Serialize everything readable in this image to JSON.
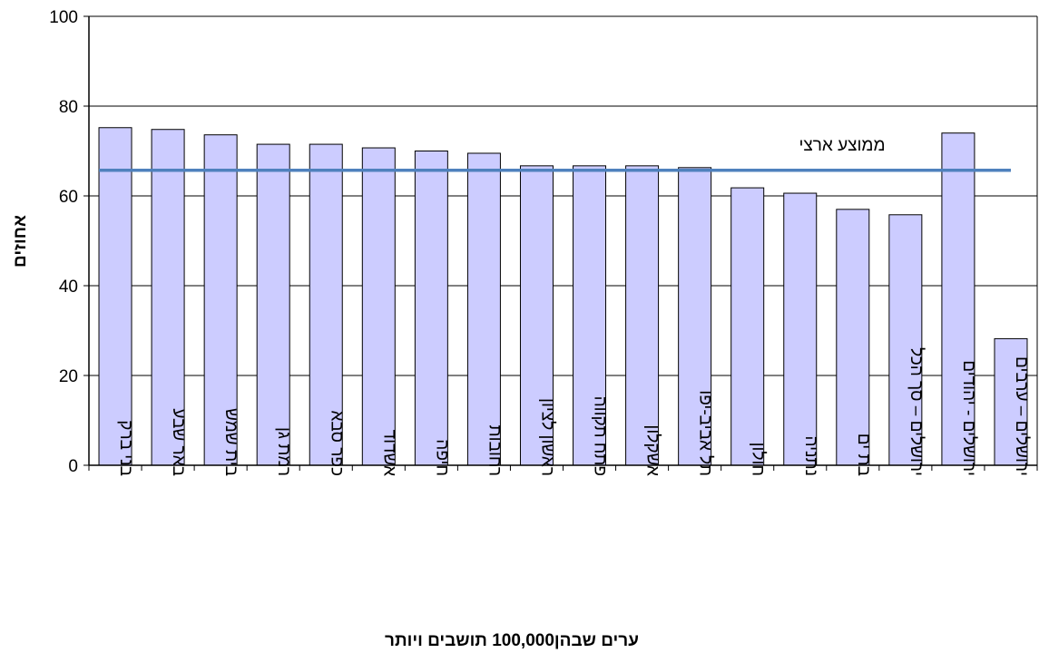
{
  "chart_data": {
    "type": "bar",
    "title": "",
    "xlabel": "ערים שבהן100,000  תושבים ויותר",
    "ylabel": "אחוזים",
    "ylim": [
      0,
      100
    ],
    "yticks": [
      0,
      20,
      40,
      60,
      80,
      100
    ],
    "grid": true,
    "categories": [
      "בני ברק",
      "באר שבע",
      "בית שמש",
      "רמת גן",
      "כפר סבא",
      "אשדוד",
      "חיפה",
      "רחובות",
      "ראשון לציון",
      "פתח תקווה",
      "אשקלון",
      "תל אביב-יפו",
      "חולון",
      "נתניה",
      "בת ים",
      "ירושלים – סך הכל",
      "ירושלים - יהודים",
      "ירושלים – ערבים"
    ],
    "values": [
      75.2,
      74.8,
      73.6,
      71.5,
      71.5,
      70.7,
      70.0,
      69.5,
      66.7,
      66.7,
      66.7,
      66.3,
      61.8,
      60.6,
      57.0,
      55.8,
      74.0,
      28.2
    ],
    "reference_line": {
      "label": "ממוצע ארצי",
      "value": 65.7
    },
    "colors": {
      "bar_fill": "#ccccff",
      "bar_stroke": "#000000",
      "reference_line": "#4f81bd",
      "grid": "#000000"
    }
  }
}
